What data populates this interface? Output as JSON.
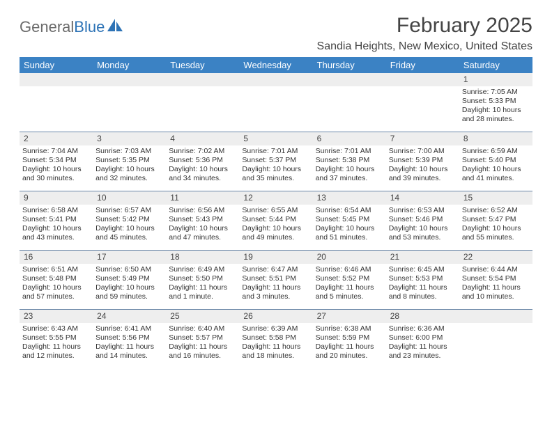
{
  "logo": {
    "textA": "General",
    "textB": "Blue"
  },
  "header": {
    "title": "February 2025",
    "location": "Sandia Heights, New Mexico, United States"
  },
  "colors": {
    "header_bg": "#3b82c4",
    "header_text": "#ffffff",
    "daynum_bg": "#eeeeee",
    "rule": "#6a87a8",
    "logo_gray": "#6b6b6b",
    "logo_blue": "#2d73b6"
  },
  "dayNames": [
    "Sunday",
    "Monday",
    "Tuesday",
    "Wednesday",
    "Thursday",
    "Friday",
    "Saturday"
  ],
  "weeks": [
    [
      {
        "n": "",
        "lines": []
      },
      {
        "n": "",
        "lines": []
      },
      {
        "n": "",
        "lines": []
      },
      {
        "n": "",
        "lines": []
      },
      {
        "n": "",
        "lines": []
      },
      {
        "n": "",
        "lines": []
      },
      {
        "n": "1",
        "lines": [
          "Sunrise: 7:05 AM",
          "Sunset: 5:33 PM",
          "Daylight: 10 hours and 28 minutes."
        ]
      }
    ],
    [
      {
        "n": "2",
        "lines": [
          "Sunrise: 7:04 AM",
          "Sunset: 5:34 PM",
          "Daylight: 10 hours and 30 minutes."
        ]
      },
      {
        "n": "3",
        "lines": [
          "Sunrise: 7:03 AM",
          "Sunset: 5:35 PM",
          "Daylight: 10 hours and 32 minutes."
        ]
      },
      {
        "n": "4",
        "lines": [
          "Sunrise: 7:02 AM",
          "Sunset: 5:36 PM",
          "Daylight: 10 hours and 34 minutes."
        ]
      },
      {
        "n": "5",
        "lines": [
          "Sunrise: 7:01 AM",
          "Sunset: 5:37 PM",
          "Daylight: 10 hours and 35 minutes."
        ]
      },
      {
        "n": "6",
        "lines": [
          "Sunrise: 7:01 AM",
          "Sunset: 5:38 PM",
          "Daylight: 10 hours and 37 minutes."
        ]
      },
      {
        "n": "7",
        "lines": [
          "Sunrise: 7:00 AM",
          "Sunset: 5:39 PM",
          "Daylight: 10 hours and 39 minutes."
        ]
      },
      {
        "n": "8",
        "lines": [
          "Sunrise: 6:59 AM",
          "Sunset: 5:40 PM",
          "Daylight: 10 hours and 41 minutes."
        ]
      }
    ],
    [
      {
        "n": "9",
        "lines": [
          "Sunrise: 6:58 AM",
          "Sunset: 5:41 PM",
          "Daylight: 10 hours and 43 minutes."
        ]
      },
      {
        "n": "10",
        "lines": [
          "Sunrise: 6:57 AM",
          "Sunset: 5:42 PM",
          "Daylight: 10 hours and 45 minutes."
        ]
      },
      {
        "n": "11",
        "lines": [
          "Sunrise: 6:56 AM",
          "Sunset: 5:43 PM",
          "Daylight: 10 hours and 47 minutes."
        ]
      },
      {
        "n": "12",
        "lines": [
          "Sunrise: 6:55 AM",
          "Sunset: 5:44 PM",
          "Daylight: 10 hours and 49 minutes."
        ]
      },
      {
        "n": "13",
        "lines": [
          "Sunrise: 6:54 AM",
          "Sunset: 5:45 PM",
          "Daylight: 10 hours and 51 minutes."
        ]
      },
      {
        "n": "14",
        "lines": [
          "Sunrise: 6:53 AM",
          "Sunset: 5:46 PM",
          "Daylight: 10 hours and 53 minutes."
        ]
      },
      {
        "n": "15",
        "lines": [
          "Sunrise: 6:52 AM",
          "Sunset: 5:47 PM",
          "Daylight: 10 hours and 55 minutes."
        ]
      }
    ],
    [
      {
        "n": "16",
        "lines": [
          "Sunrise: 6:51 AM",
          "Sunset: 5:48 PM",
          "Daylight: 10 hours and 57 minutes."
        ]
      },
      {
        "n": "17",
        "lines": [
          "Sunrise: 6:50 AM",
          "Sunset: 5:49 PM",
          "Daylight: 10 hours and 59 minutes."
        ]
      },
      {
        "n": "18",
        "lines": [
          "Sunrise: 6:49 AM",
          "Sunset: 5:50 PM",
          "Daylight: 11 hours and 1 minute."
        ]
      },
      {
        "n": "19",
        "lines": [
          "Sunrise: 6:47 AM",
          "Sunset: 5:51 PM",
          "Daylight: 11 hours and 3 minutes."
        ]
      },
      {
        "n": "20",
        "lines": [
          "Sunrise: 6:46 AM",
          "Sunset: 5:52 PM",
          "Daylight: 11 hours and 5 minutes."
        ]
      },
      {
        "n": "21",
        "lines": [
          "Sunrise: 6:45 AM",
          "Sunset: 5:53 PM",
          "Daylight: 11 hours and 8 minutes."
        ]
      },
      {
        "n": "22",
        "lines": [
          "Sunrise: 6:44 AM",
          "Sunset: 5:54 PM",
          "Daylight: 11 hours and 10 minutes."
        ]
      }
    ],
    [
      {
        "n": "23",
        "lines": [
          "Sunrise: 6:43 AM",
          "Sunset: 5:55 PM",
          "Daylight: 11 hours and 12 minutes."
        ]
      },
      {
        "n": "24",
        "lines": [
          "Sunrise: 6:41 AM",
          "Sunset: 5:56 PM",
          "Daylight: 11 hours and 14 minutes."
        ]
      },
      {
        "n": "25",
        "lines": [
          "Sunrise: 6:40 AM",
          "Sunset: 5:57 PM",
          "Daylight: 11 hours and 16 minutes."
        ]
      },
      {
        "n": "26",
        "lines": [
          "Sunrise: 6:39 AM",
          "Sunset: 5:58 PM",
          "Daylight: 11 hours and 18 minutes."
        ]
      },
      {
        "n": "27",
        "lines": [
          "Sunrise: 6:38 AM",
          "Sunset: 5:59 PM",
          "Daylight: 11 hours and 20 minutes."
        ]
      },
      {
        "n": "28",
        "lines": [
          "Sunrise: 6:36 AM",
          "Sunset: 6:00 PM",
          "Daylight: 11 hours and 23 minutes."
        ]
      },
      {
        "n": "",
        "lines": []
      }
    ]
  ]
}
